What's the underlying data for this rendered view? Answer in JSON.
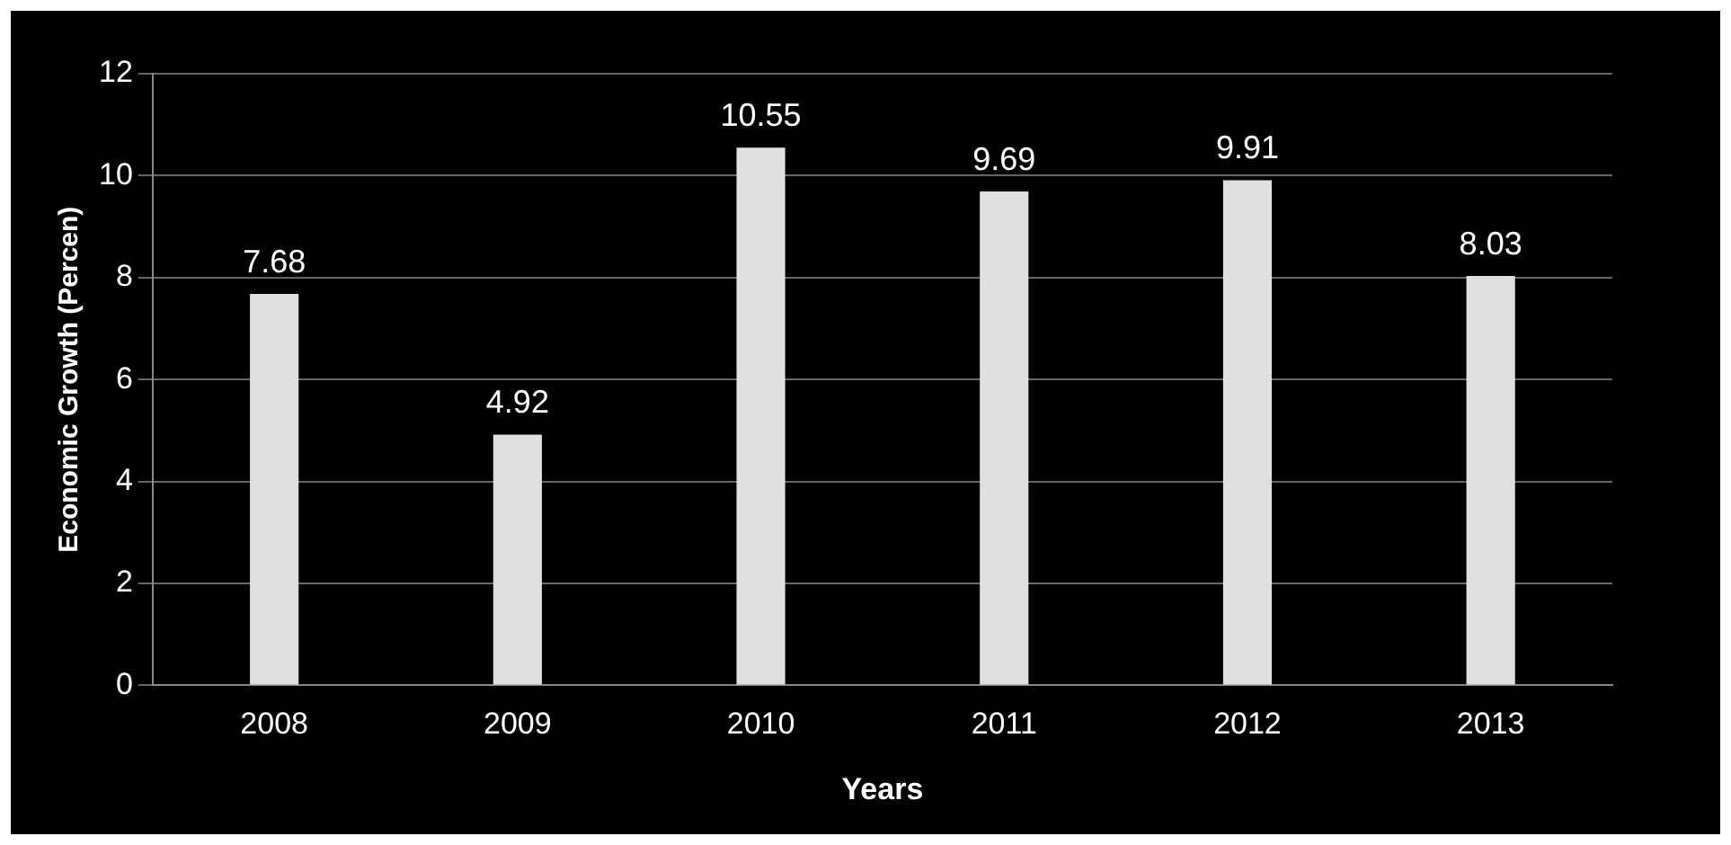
{
  "chart_data": {
    "type": "bar",
    "xlabel": "Years",
    "ylabel": "Economic Growth (Percen)",
    "categories": [
      "2008",
      "2009",
      "2010",
      "2011",
      "2012",
      "2013"
    ],
    "values": [
      7.68,
      4.92,
      10.55,
      9.69,
      9.91,
      8.03
    ],
    "color": "#e0e0e0",
    "ylim": [
      0,
      12
    ],
    "yticks": [
      0,
      2,
      4,
      6,
      8,
      10,
      12
    ],
    "grid": "y",
    "data_labels": true
  }
}
